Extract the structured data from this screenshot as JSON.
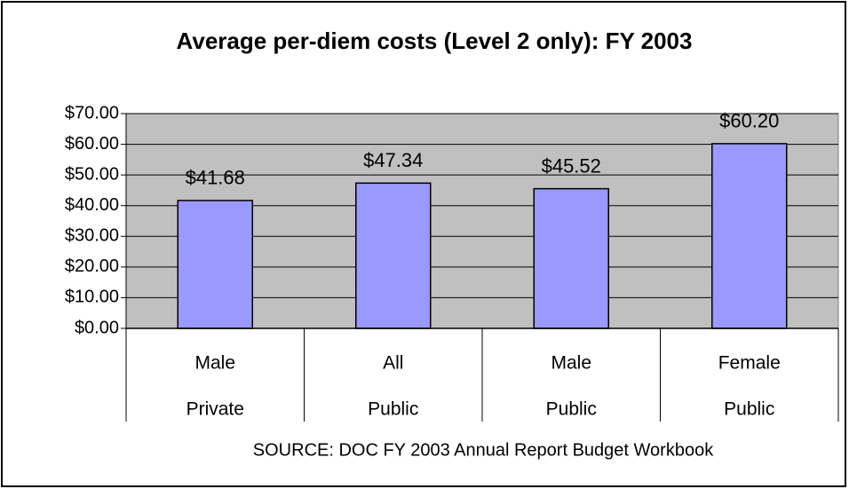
{
  "chart_data": {
    "type": "bar",
    "title": "Average per-diem costs (Level 2 only): FY 2003",
    "categories": [
      [
        "Male",
        "Private"
      ],
      [
        "All",
        "Public"
      ],
      [
        "Male",
        "Public"
      ],
      [
        "Female",
        "Public"
      ]
    ],
    "values": [
      41.68,
      47.34,
      45.52,
      60.2
    ],
    "value_labels": [
      "$41.68",
      "$47.34",
      "$45.52",
      "$60.20"
    ],
    "color": "#9999ff",
    "ylim": [
      0,
      70
    ],
    "yticks": [
      {
        "value": 0,
        "label": "$0.00"
      },
      {
        "value": 10,
        "label": "$10.00"
      },
      {
        "value": 20,
        "label": "$20.00"
      },
      {
        "value": 30,
        "label": "$30.00"
      },
      {
        "value": 40,
        "label": "$40.00"
      },
      {
        "value": 50,
        "label": "$50.00"
      },
      {
        "value": 60,
        "label": "$60.00"
      },
      {
        "value": 70,
        "label": "$70.00"
      }
    ],
    "grid": true,
    "source": "SOURCE: DOC FY 2003 Annual Report Budget Workbook"
  }
}
